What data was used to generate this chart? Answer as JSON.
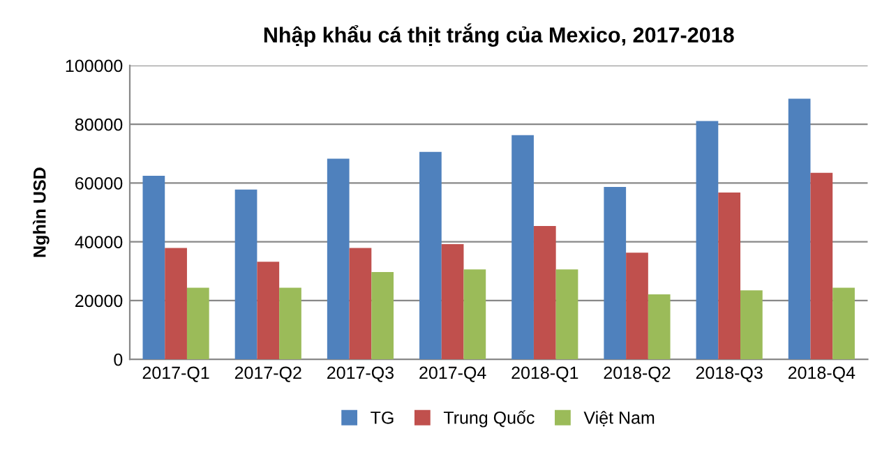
{
  "chart_data": {
    "type": "bar",
    "title": "Nhập khẩu cá thịt trắng của Mexico, 2017-2018",
    "ylabel": "Nghìn USD",
    "categories": [
      "2017-Q1",
      "2017-Q2",
      "2017-Q3",
      "2017-Q4",
      "2018-Q1",
      "2018-Q2",
      "2018-Q3",
      "2018-Q4"
    ],
    "series": [
      {
        "name": "TG",
        "color": "#4f81bd",
        "values": [
          62500,
          57800,
          68300,
          70600,
          76300,
          58700,
          81100,
          88700
        ]
      },
      {
        "name": "Trung Quốc",
        "color": "#c0504d",
        "values": [
          37900,
          33200,
          37900,
          39200,
          45400,
          36300,
          56800,
          63500
        ]
      },
      {
        "name": "Việt Nam",
        "color": "#9bbb59",
        "values": [
          24400,
          24400,
          29700,
          30600,
          30600,
          22100,
          23500,
          24400
        ]
      }
    ],
    "ylim": [
      0,
      100000
    ],
    "yticks": [
      0,
      20000,
      40000,
      60000,
      80000,
      100000
    ],
    "grid": "y",
    "legend": "bottom"
  }
}
